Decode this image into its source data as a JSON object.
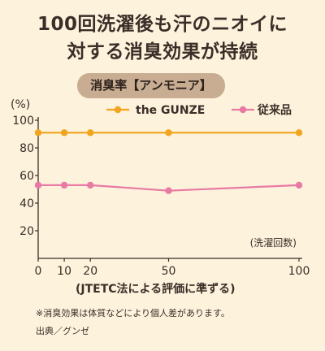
{
  "title": {
    "line1": "100回洗濯後も汗のニオイに",
    "line2": "対する消臭効果が持続"
  },
  "subtitle": "消臭率【アンモニア】",
  "notes": {
    "footnote": "※消臭効果は体質などにより個人差があります。",
    "source": "出典／グンゼ"
  },
  "colors": {
    "background": "#fdf2dc",
    "series_gunze": "#f2a41e",
    "series_conventional": "#e87aa4",
    "pill": "#c8ad92"
  },
  "chart_data": {
    "type": "line",
    "title": "消臭率【アンモニア】",
    "ylabel": "(%)",
    "xlabel": "(JTETC法による評価に準ずる)",
    "x_annotation": "(洗濯回数)",
    "x": [
      0,
      10,
      20,
      50,
      100
    ],
    "x_ticks": [
      0,
      10,
      20,
      50,
      100
    ],
    "y_ticks": [
      20,
      40,
      60,
      80,
      100
    ],
    "ylim": [
      0,
      100
    ],
    "xlim": [
      0,
      100
    ],
    "grid": false,
    "legend_position": "top-right",
    "series": [
      {
        "name": "the GUNZE",
        "values": [
          91,
          91,
          91,
          91,
          91
        ],
        "color": "#f2a41e"
      },
      {
        "name": "従来品",
        "values": [
          53,
          53,
          53,
          49,
          53
        ],
        "color": "#e87aa4"
      }
    ]
  }
}
